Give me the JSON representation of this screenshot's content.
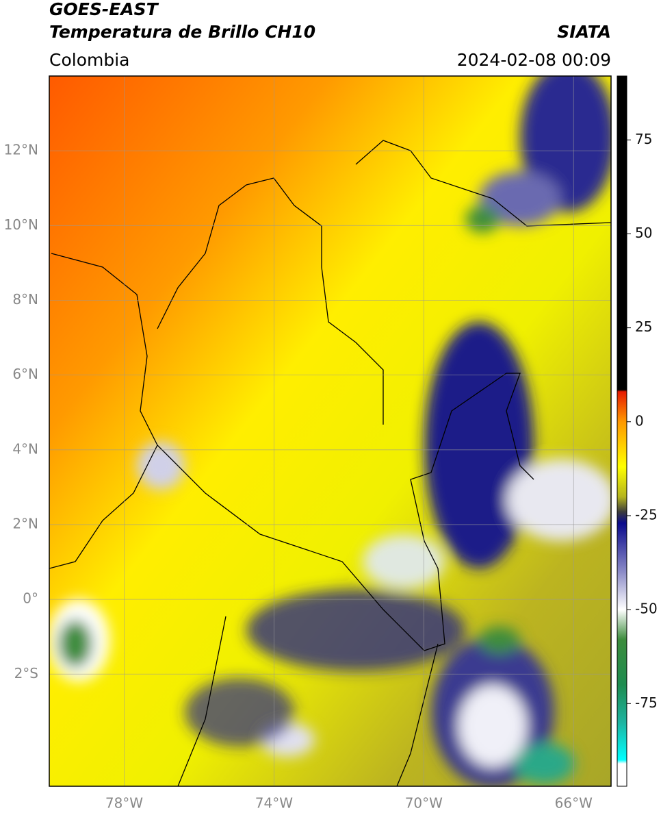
{
  "header": {
    "title": "GOES-EAST",
    "subtitle": "Temperatura de Brillo CH10",
    "source": "SIATA",
    "region": "Colombia",
    "datetime": "2024-02-08 00:09"
  },
  "map": {
    "lonlim": [
      -80,
      -65
    ],
    "latlim": [
      -5,
      14
    ],
    "lat_ticks": [
      {
        "value": 12,
        "label": "12°N"
      },
      {
        "value": 10,
        "label": "10°N"
      },
      {
        "value": 8,
        "label": "8°N"
      },
      {
        "value": 6,
        "label": "6°N"
      },
      {
        "value": 4,
        "label": "4°N"
      },
      {
        "value": 2,
        "label": "2°N"
      },
      {
        "value": 0,
        "label": "0°"
      },
      {
        "value": -2,
        "label": "2°S"
      }
    ],
    "lon_ticks": [
      {
        "value": -78,
        "label": "78°W"
      },
      {
        "value": -74,
        "label": "74°W"
      },
      {
        "value": -70,
        "label": "70°W"
      },
      {
        "value": -66,
        "label": "66°W"
      }
    ],
    "grid": true
  },
  "colorbar": {
    "range": [
      -97,
      92
    ],
    "ticks": [
      75,
      50,
      25,
      0,
      -25,
      -50,
      -75
    ],
    "stops": [
      {
        "value": 92,
        "color": "#000000"
      },
      {
        "value": 8.5,
        "color": "#000000"
      },
      {
        "value": 8,
        "color": "#e61a00"
      },
      {
        "value": 0,
        "color": "#ff9900"
      },
      {
        "value": -12,
        "color": "#ffff00"
      },
      {
        "value": -20,
        "color": "#b4b41e"
      },
      {
        "value": -24,
        "color": "#3c3c3c"
      },
      {
        "value": -27,
        "color": "#0a0a8c"
      },
      {
        "value": -40,
        "color": "#8c8cc8"
      },
      {
        "value": -50,
        "color": "#ffffff"
      },
      {
        "value": -58,
        "color": "#3c8c3c"
      },
      {
        "value": -70,
        "color": "#1e8c50"
      },
      {
        "value": -80,
        "color": "#1eb4a0"
      },
      {
        "value": -90,
        "color": "#00ffff"
      },
      {
        "value": -91,
        "color": "#ffffff"
      },
      {
        "value": -97,
        "color": "#ffffff"
      }
    ]
  }
}
